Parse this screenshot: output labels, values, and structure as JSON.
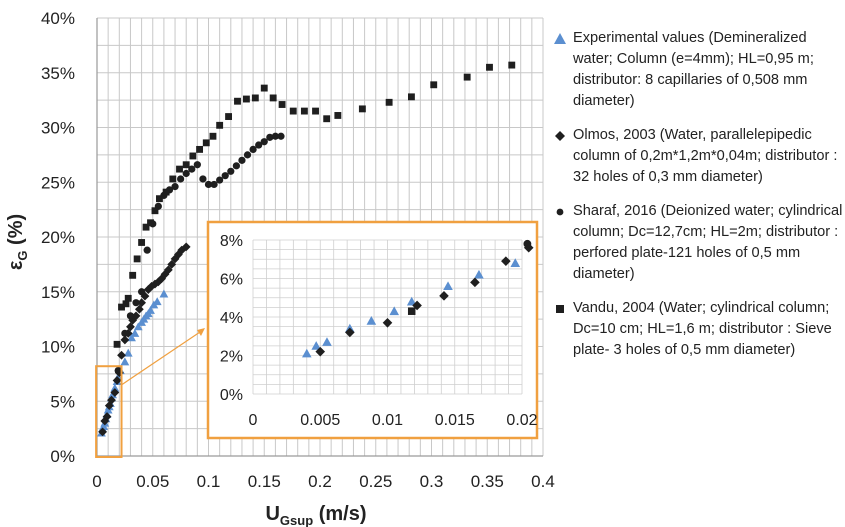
{
  "chart_data": {
    "type": "scatter",
    "xlabel": "U",
    "xlabel_sub": "Gsup",
    "xlabel_unit": "(m/s)",
    "ylabel": "ε",
    "ylabel_sub": "G",
    "ylabel_unit": "(%)",
    "xlim": [
      0,
      0.4
    ],
    "ylim": [
      0,
      40
    ],
    "x_ticks": [
      "0",
      "0.05",
      "0.1",
      "0.15",
      "0.2",
      "0.25",
      "0.3",
      "0.35",
      "0.4"
    ],
    "y_ticks": [
      "0%",
      "5%",
      "10%",
      "15%",
      "20%",
      "25%",
      "30%",
      "35%",
      "40%"
    ],
    "grid": true,
    "legend_position": "right",
    "colors": {
      "experimental": "#5b8fd0",
      "olmos": "#1f1f1f",
      "sharaf": "#1f1f1f",
      "vandu": "#1f1f1f",
      "inset_frame": "#f0a040"
    },
    "series": [
      {
        "name": "Experimental values (Demineralized water; Column (e=4mm); HL=0,95 m; distributor: 8 capillaries of 0,508 mm diameter)",
        "marker": "triangle",
        "x": [
          0.004,
          0.005,
          0.006,
          0.007,
          0.008,
          0.009,
          0.01,
          0.011,
          0.012,
          0.013,
          0.014,
          0.016,
          0.018,
          0.019,
          0.021,
          0.025,
          0.028,
          0.031,
          0.034,
          0.037,
          0.04,
          0.042,
          0.044,
          0.046,
          0.048,
          0.051,
          0.054,
          0.06
        ],
        "y": [
          2.1,
          2.5,
          2.7,
          3.0,
          3.4,
          3.8,
          4.2,
          4.5,
          4.8,
          5.3,
          5.6,
          6.2,
          6.8,
          7.2,
          7.8,
          8.6,
          9.4,
          10.8,
          11.2,
          11.8,
          12.2,
          12.5,
          12.8,
          13.0,
          13.3,
          13.8,
          14.1,
          14.8
        ]
      },
      {
        "name": "Olmos, 2003 (Water, parallelepipedic column of 0,2m*1,2m*0,04m; distributor : 32 holes of 0,3 mm diameter)",
        "marker": "diamond",
        "x": [
          0.005,
          0.007,
          0.009,
          0.011,
          0.013,
          0.016,
          0.018,
          0.02,
          0.022,
          0.025,
          0.028,
          0.03,
          0.032,
          0.035,
          0.038,
          0.04,
          0.043,
          0.046,
          0.049,
          0.052,
          0.055,
          0.058,
          0.061,
          0.064,
          0.067,
          0.07,
          0.073,
          0.076,
          0.08
        ],
        "y": [
          2.2,
          3.2,
          3.6,
          4.6,
          5.1,
          5.8,
          6.9,
          7.6,
          9.2,
          10.6,
          11.2,
          11.8,
          12.4,
          12.8,
          13.4,
          14.0,
          14.6,
          15.2,
          15.5,
          15.7,
          15.9,
          16.2,
          16.6,
          17.0,
          17.5,
          18.0,
          18.4,
          18.8,
          19.1
        ]
      },
      {
        "name": "Sharaf, 2016 (Deionized water; cylindrical column; Dc=12,7cm; HL=2m; distributor : perfored plate-121 holes of 0,5 mm diameter)",
        "marker": "circle",
        "x": [
          0.019,
          0.025,
          0.03,
          0.035,
          0.04,
          0.045,
          0.05,
          0.055,
          0.06,
          0.065,
          0.07,
          0.075,
          0.08,
          0.085,
          0.09,
          0.095,
          0.1,
          0.105,
          0.11,
          0.115,
          0.12,
          0.125,
          0.13,
          0.135,
          0.14,
          0.145,
          0.15,
          0.155,
          0.16,
          0.165
        ],
        "y": [
          7.8,
          11.2,
          12.8,
          14.0,
          15.0,
          18.8,
          21.2,
          22.8,
          23.8,
          24.3,
          24.6,
          25.3,
          25.8,
          26.2,
          26.6,
          25.3,
          24.8,
          24.8,
          25.2,
          25.6,
          26.0,
          26.5,
          27.0,
          27.5,
          28.0,
          28.4,
          28.7,
          29.1,
          29.2,
          29.2
        ]
      },
      {
        "name": "Vandu, 2004 (Water; cylindrical column; Dc=10 cm; HL=1,6 m; distributor : Sieve plate- 3 holes of 0,5 mm diameter)",
        "marker": "square",
        "x": [
          0.018,
          0.022,
          0.026,
          0.028,
          0.032,
          0.036,
          0.04,
          0.044,
          0.048,
          0.052,
          0.056,
          0.062,
          0.068,
          0.074,
          0.08,
          0.086,
          0.092,
          0.098,
          0.104,
          0.11,
          0.118,
          0.126,
          0.134,
          0.142,
          0.15,
          0.158,
          0.166,
          0.176,
          0.186,
          0.196,
          0.206,
          0.216,
          0.238,
          0.262,
          0.282,
          0.302,
          0.332,
          0.352,
          0.372
        ],
        "y": [
          10.2,
          13.6,
          13.9,
          14.4,
          16.5,
          18.0,
          19.5,
          20.9,
          21.3,
          22.4,
          23.5,
          24.1,
          25.3,
          26.2,
          26.6,
          27.4,
          28.0,
          28.6,
          29.2,
          30.2,
          31.0,
          32.4,
          32.6,
          32.7,
          33.6,
          32.7,
          32.1,
          31.5,
          31.5,
          31.5,
          30.8,
          31.1,
          31.7,
          32.3,
          32.8,
          33.9,
          34.6,
          35.5,
          35.7
        ]
      }
    ],
    "inset": {
      "xlim": [
        0,
        0.02
      ],
      "ylim": [
        0,
        8
      ],
      "x_ticks": [
        "0",
        "0.005",
        "0.01",
        "0.015",
        "0.02"
      ],
      "y_ticks": [
        "0%",
        "2%",
        "4%",
        "6%",
        "8%"
      ],
      "grid": true,
      "series": [
        {
          "marker": "triangle",
          "x": [
            0.004,
            0.0047,
            0.0055,
            0.0072,
            0.0088,
            0.0105,
            0.0118,
            0.0145,
            0.0168,
            0.0195
          ],
          "y": [
            2.1,
            2.5,
            2.7,
            3.4,
            3.8,
            4.3,
            4.8,
            5.6,
            6.2,
            6.8
          ]
        },
        {
          "marker": "diamond",
          "x": [
            0.005,
            0.0072,
            0.01,
            0.0122,
            0.0142,
            0.0165,
            0.0188,
            0.0205
          ],
          "y": [
            2.2,
            3.2,
            3.7,
            4.6,
            5.1,
            5.8,
            6.9,
            7.6
          ]
        },
        {
          "marker": "circle",
          "x": [
            0.0204
          ],
          "y": [
            7.8
          ]
        },
        {
          "marker": "square",
          "x": [
            0.0118
          ],
          "y": [
            4.3
          ]
        }
      ]
    }
  }
}
